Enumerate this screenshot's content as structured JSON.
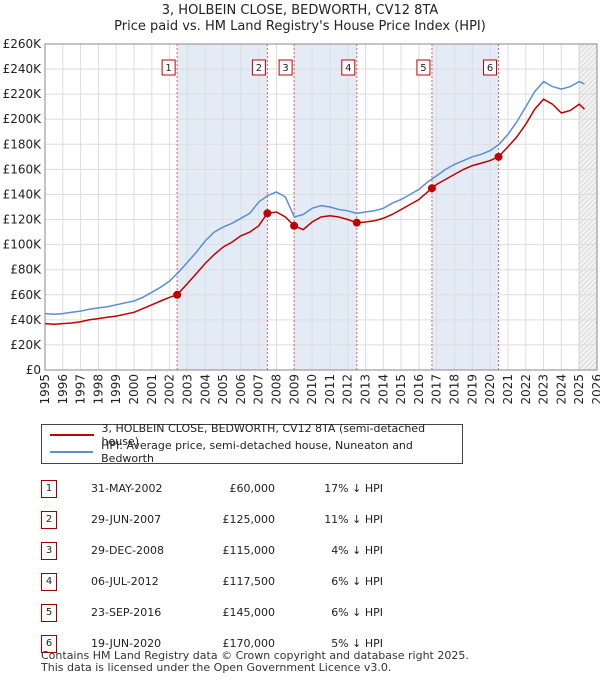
{
  "header": {
    "title": "3, HOLBEIN CLOSE, BEDWORTH, CV12 8TA",
    "subtitle": "Price paid vs. HM Land Registry's House Price Index (HPI)"
  },
  "legend": [
    {
      "label": "3, HOLBEIN CLOSE, BEDWORTH, CV12 8TA (semi-detached house)",
      "color": "#c00000"
    },
    {
      "label": "HPI: Average price, semi-detached house, Nuneaton and Bedworth",
      "color": "#5b8fd0"
    }
  ],
  "sales": [
    {
      "num": "1",
      "date": "31-MAY-2002",
      "price": "£60,000",
      "hpi": "17% ↓ HPI"
    },
    {
      "num": "2",
      "date": "29-JUN-2007",
      "price": "£125,000",
      "hpi": "11% ↓ HPI"
    },
    {
      "num": "3",
      "date": "29-DEC-2008",
      "price": "£115,000",
      "hpi": "4% ↓ HPI"
    },
    {
      "num": "4",
      "date": "06-JUL-2012",
      "price": "£117,500",
      "hpi": "6% ↓ HPI"
    },
    {
      "num": "5",
      "date": "23-SEP-2016",
      "price": "£145,000",
      "hpi": "6% ↓ HPI"
    },
    {
      "num": "6",
      "date": "19-JUN-2020",
      "price": "£170,000",
      "hpi": "5% ↓ HPI"
    }
  ],
  "footer": {
    "line1": "Contains HM Land Registry data © Crown copyright and database right 2025.",
    "line2": "This data is licensed under the Open Government Licence v3.0."
  },
  "chart_data": {
    "type": "line",
    "title": "3, HOLBEIN CLOSE, BEDWORTH, CV12 8TA",
    "subtitle": "Price paid vs. HM Land Registry's House Price Index (HPI)",
    "xlabel": "",
    "ylabel": "",
    "xlim": [
      1995,
      2026
    ],
    "ylim": [
      0,
      260000
    ],
    "grid": true,
    "x_ticks": [
      1995,
      1996,
      1997,
      1998,
      1999,
      2000,
      2001,
      2002,
      2003,
      2004,
      2005,
      2006,
      2007,
      2008,
      2009,
      2010,
      2011,
      2012,
      2013,
      2014,
      2015,
      2016,
      2017,
      2018,
      2019,
      2020,
      2021,
      2022,
      2023,
      2024,
      2025,
      2026
    ],
    "y_ticks": [
      {
        "value": 0,
        "label": "£0"
      },
      {
        "value": 20000,
        "label": "£20K"
      },
      {
        "value": 40000,
        "label": "£40K"
      },
      {
        "value": 60000,
        "label": "£60K"
      },
      {
        "value": 80000,
        "label": "£80K"
      },
      {
        "value": 100000,
        "label": "£100K"
      },
      {
        "value": 120000,
        "label": "£120K"
      },
      {
        "value": 140000,
        "label": "£140K"
      },
      {
        "value": 160000,
        "label": "£160K"
      },
      {
        "value": 180000,
        "label": "£180K"
      },
      {
        "value": 200000,
        "label": "£200K"
      },
      {
        "value": 220000,
        "label": "£220K"
      },
      {
        "value": 240000,
        "label": "£240K"
      },
      {
        "value": 260000,
        "label": "£260K"
      }
    ],
    "series": [
      {
        "name": "HPI: Average price, semi-detached house, Nuneaton and Bedworth",
        "color": "#5b8fd0",
        "x": [
          1995.0,
          1995.5,
          1996.0,
          1996.5,
          1997.0,
          1997.5,
          1998.0,
          1998.5,
          1999.0,
          1999.5,
          2000.0,
          2000.5,
          2001.0,
          2001.5,
          2002.0,
          2002.5,
          2003.0,
          2003.5,
          2004.0,
          2004.5,
          2005.0,
          2005.5,
          2006.0,
          2006.5,
          2007.0,
          2007.5,
          2008.0,
          2008.5,
          2009.0,
          2009.5,
          2010.0,
          2010.5,
          2011.0,
          2011.5,
          2012.0,
          2012.5,
          2013.0,
          2013.5,
          2014.0,
          2014.5,
          2015.0,
          2015.5,
          2016.0,
          2016.5,
          2017.0,
          2017.5,
          2018.0,
          2018.5,
          2019.0,
          2019.5,
          2020.0,
          2020.5,
          2021.0,
          2021.5,
          2022.0,
          2022.5,
          2023.0,
          2023.5,
          2024.0,
          2024.5,
          2025.0,
          2025.3
        ],
        "values": [
          45000,
          44500,
          45000,
          46000,
          47000,
          48500,
          49500,
          50500,
          52000,
          53500,
          55000,
          58000,
          62000,
          66000,
          71000,
          78000,
          86000,
          94000,
          103000,
          110000,
          114000,
          117000,
          121000,
          125000,
          134000,
          139000,
          142000,
          138000,
          122000,
          124000,
          129000,
          131000,
          130000,
          128000,
          127000,
          125000,
          126000,
          127000,
          129000,
          133000,
          136000,
          140000,
          144000,
          150000,
          155000,
          160000,
          164000,
          167000,
          170000,
          172000,
          175000,
          180000,
          188000,
          198000,
          210000,
          222000,
          230000,
          226000,
          224000,
          226000,
          230000,
          228000
        ]
      },
      {
        "name": "3, HOLBEIN CLOSE, BEDWORTH, CV12 8TA (semi-detached house)",
        "color": "#c00000",
        "x": [
          1995.0,
          1995.5,
          1996.0,
          1996.5,
          1997.0,
          1997.5,
          1998.0,
          1998.5,
          1999.0,
          1999.5,
          2000.0,
          2000.5,
          2001.0,
          2001.5,
          2002.0,
          2002.42,
          2003.0,
          2003.5,
          2004.0,
          2004.5,
          2005.0,
          2005.5,
          2006.0,
          2006.5,
          2007.0,
          2007.49,
          2008.0,
          2008.5,
          2008.99,
          2009.5,
          2010.0,
          2010.5,
          2011.0,
          2011.5,
          2012.0,
          2012.51,
          2013.0,
          2013.5,
          2014.0,
          2014.5,
          2015.0,
          2015.5,
          2016.0,
          2016.73,
          2017.0,
          2017.5,
          2018.0,
          2018.5,
          2019.0,
          2019.5,
          2020.0,
          2020.47,
          2021.0,
          2021.5,
          2022.0,
          2022.5,
          2023.0,
          2023.5,
          2024.0,
          2024.5,
          2025.0,
          2025.3
        ],
        "values": [
          37000,
          36500,
          37000,
          37500,
          38500,
          40000,
          41000,
          42000,
          43000,
          44500,
          46000,
          49000,
          52000,
          55000,
          58000,
          60000,
          69000,
          77000,
          85000,
          92000,
          98000,
          102000,
          107000,
          110000,
          115000,
          125000,
          126000,
          122000,
          115000,
          112000,
          118000,
          122000,
          123000,
          122000,
          120000,
          117500,
          118000,
          119000,
          121000,
          124000,
          128000,
          132000,
          136000,
          145000,
          148000,
          152000,
          156000,
          160000,
          163000,
          165000,
          167000,
          170000,
          178000,
          186000,
          196000,
          208000,
          216000,
          212000,
          205000,
          207000,
          212000,
          208000
        ]
      }
    ],
    "sale_markers": [
      {
        "num": "1",
        "x": 2002.42,
        "value": 60000
      },
      {
        "num": "2",
        "x": 2007.49,
        "value": 125000
      },
      {
        "num": "3",
        "x": 2008.99,
        "value": 115000
      },
      {
        "num": "4",
        "x": 2012.51,
        "value": 117500
      },
      {
        "num": "5",
        "x": 2016.73,
        "value": 145000
      },
      {
        "num": "6",
        "x": 2020.47,
        "value": 170000
      }
    ]
  },
  "colors": {
    "property_line": "#c00000",
    "hpi_line": "#5b8fd0",
    "shade": "#e3ebf6",
    "grid": "#dddddd",
    "marker_border": "#c00000"
  }
}
